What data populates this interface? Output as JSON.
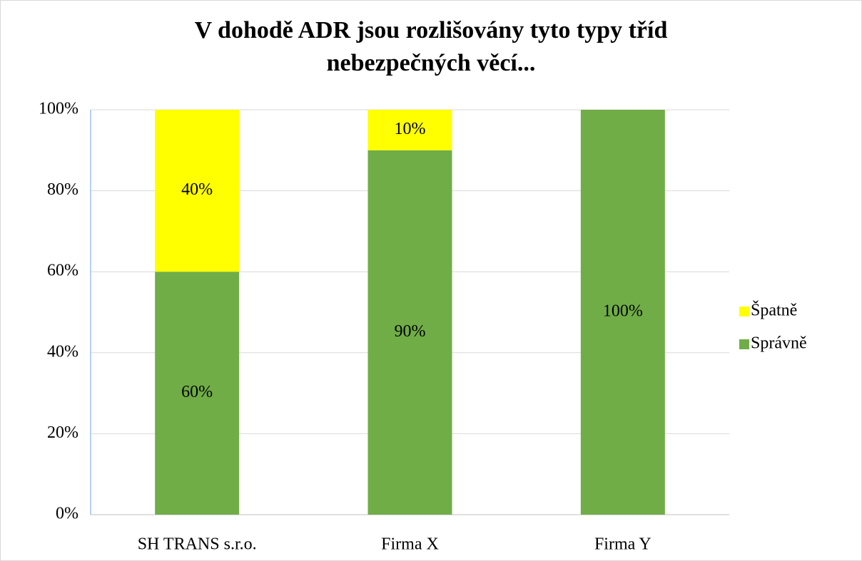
{
  "chart_data": {
    "type": "stacked_bar",
    "title": "V dohodě ADR jsou rozlišovány tyto typy tříd nebezpečných věcí...",
    "categories": [
      "SH TRANS s.r.o.",
      "Firma X",
      "Firma Y"
    ],
    "series": [
      {
        "name": "Správně",
        "color": "#70ad47",
        "values": [
          60,
          90,
          100
        ],
        "value_labels": [
          "60%",
          "90%",
          "100%"
        ]
      },
      {
        "name": "Špatně",
        "color": "#ffff00",
        "values": [
          40,
          10,
          0
        ],
        "value_labels": [
          "40%",
          "10%",
          null
        ]
      }
    ],
    "ylim": [
      0,
      100
    ],
    "yticks": [
      {
        "value": 0,
        "label": "0%"
      },
      {
        "value": 20,
        "label": "20%"
      },
      {
        "value": 40,
        "label": "40%"
      },
      {
        "value": 60,
        "label": "60%"
      },
      {
        "value": 80,
        "label": "80%"
      },
      {
        "value": 100,
        "label": "100%"
      }
    ],
    "grid": true,
    "legend": "right"
  }
}
